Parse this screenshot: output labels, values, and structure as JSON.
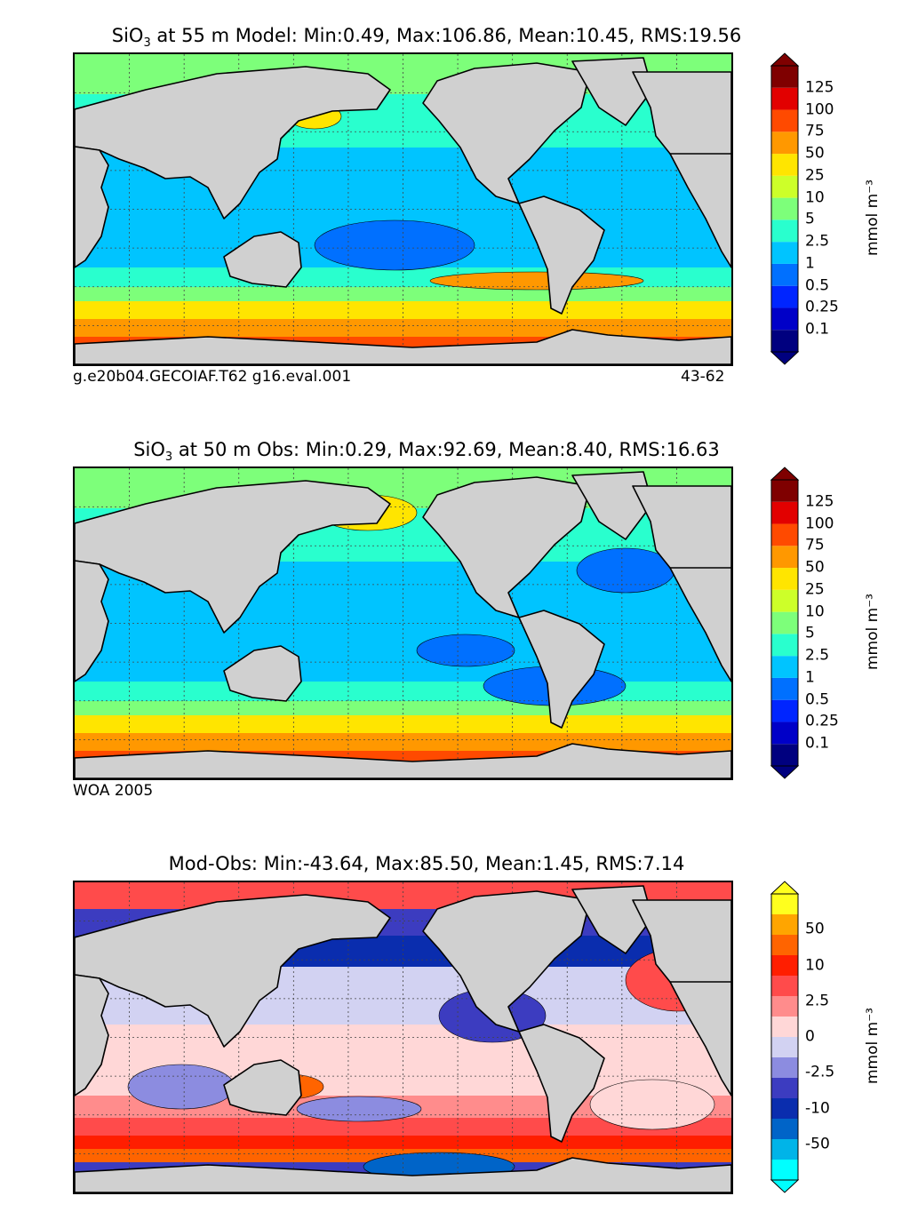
{
  "panels": [
    {
      "title_prefix": "SiO",
      "title_sub": "3",
      "title_rest": " at 55 m Model: Min:0.49, Max:106.86, Mean:10.45, RMS:19.56",
      "caption_left": "g.e20b04.GECOIAF.T62 g16.eval.001",
      "caption_right": "43-62",
      "colorbar": {
        "ticks": [
          "0.1",
          "0.25",
          "0.5",
          "1",
          "2.5",
          "5",
          "10",
          "25",
          "50",
          "75",
          "100",
          "125"
        ],
        "colors": [
          "#00007f",
          "#0000c8",
          "#0025ff",
          "#0070ff",
          "#00c4ff",
          "#29ffce",
          "#7dff7a",
          "#cdff29",
          "#ffe500",
          "#ff9800",
          "#ff4a00",
          "#e20000",
          "#7f0000"
        ],
        "unit": "mmol m⁻³"
      }
    },
    {
      "title_prefix": "SiO",
      "title_sub": "3",
      "title_rest": " at 50 m Obs: Min:0.29, Max:92.69, Mean:8.40, RMS:16.63",
      "caption_left": "WOA 2005",
      "caption_right": "",
      "colorbar": {
        "ticks": [
          "0.1",
          "0.25",
          "0.5",
          "1",
          "2.5",
          "5",
          "10",
          "25",
          "50",
          "75",
          "100",
          "125"
        ],
        "colors": [
          "#00007f",
          "#0000c8",
          "#0025ff",
          "#0070ff",
          "#00c4ff",
          "#29ffce",
          "#7dff7a",
          "#cdff29",
          "#ffe500",
          "#ff9800",
          "#ff4a00",
          "#e20000",
          "#7f0000"
        ],
        "unit": "mmol m⁻³"
      }
    },
    {
      "title_prefix": "",
      "title_sub": "",
      "title_rest": "Mod-Obs: Min:-43.64, Max:85.50, Mean:1.45, RMS:7.14",
      "caption_left": "",
      "caption_right": "",
      "colorbar": {
        "ticks": [
          "-50",
          "-10",
          "-2.5",
          "0",
          "2.5",
          "10",
          "50"
        ],
        "colors": [
          "#00ffff",
          "#00b4e8",
          "#0064c8",
          "#0a2dae",
          "#3c3cc0",
          "#8c8ce0",
          "#d2d2f2",
          "#ffd7d7",
          "#ff8c8c",
          "#ff4b4b",
          "#ff1e00",
          "#ff6400",
          "#ffa500",
          "#ffff1e"
        ],
        "unit": "mmol m⁻³"
      }
    }
  ],
  "colors": {
    "land": "#d0d0d0",
    "coast": "#000000",
    "grid": "#444444"
  }
}
